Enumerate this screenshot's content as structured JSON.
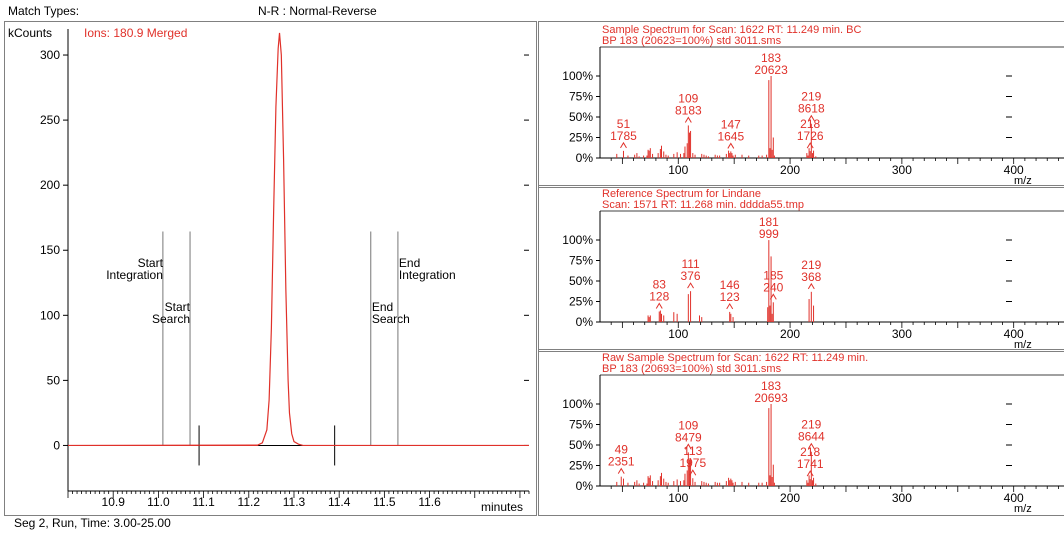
{
  "header": {
    "match_types_label": "Match Types:",
    "match_mode": "N-R : Normal-Reverse"
  },
  "footer": {
    "segment_info": "Seg 2, Run, Time:  3.00-25.00"
  },
  "colors": {
    "trace": "#e0312a",
    "axis": "#000000",
    "grid": "#999999",
    "frame": "#808080"
  },
  "chart_data": [
    {
      "type": "line",
      "title": "Ions: 180.9 Merged",
      "xlabel": "minutes",
      "ylabel": "kCounts",
      "xlim": [
        10.8,
        11.82
      ],
      "ylim": [
        -35,
        320
      ],
      "x_ticks": [
        10.9,
        11.0,
        11.1,
        11.2,
        11.3,
        11.4,
        11.5,
        11.6
      ],
      "x_tick_labels": [
        "10.9",
        "11.0",
        "11.1",
        "11.2",
        "11.3",
        "11.4",
        "11.5",
        "11.6"
      ],
      "y_ticks": [
        0,
        50,
        100,
        150,
        200,
        250,
        300
      ],
      "y_tick_labels": [
        "0",
        "50",
        "100",
        "150",
        "200",
        "250",
        "300"
      ],
      "series": [
        {
          "x": [
            10.8,
            11.22,
            11.23,
            11.24,
            11.245,
            11.25,
            11.255,
            11.26,
            11.265,
            11.268,
            11.272,
            11.277,
            11.282,
            11.287,
            11.29,
            11.295,
            11.3,
            11.31,
            11.32,
            11.82
          ],
          "y": [
            0,
            0.3,
            2,
            12,
            35,
            90,
            180,
            260,
            305,
            317,
            300,
            220,
            120,
            50,
            25,
            9,
            3,
            1,
            0,
            0
          ]
        }
      ],
      "markers": [
        {
          "label_lines": [
            "Start",
            "Integration"
          ],
          "x": 11.01
        },
        {
          "label_lines": [
            "Start",
            "Search"
          ],
          "x": 11.07
        },
        {
          "label_lines": [
            "End",
            "Search"
          ],
          "x": 11.47
        },
        {
          "label_lines": [
            "End",
            "Integration"
          ],
          "x": 11.53
        }
      ],
      "integration_ticks": [
        11.09,
        11.39
      ]
    },
    {
      "type": "bar",
      "title_lines": [
        "Sample Spectrum for Scan: 1622 RT: 11.249 min. BC",
        "BP 183 (20623=100%) std 3011.sms"
      ],
      "xlabel": "m/z",
      "xlim": [
        30,
        445
      ],
      "ylim": [
        0,
        100
      ],
      "x_ticks": [
        100,
        200,
        300,
        400
      ],
      "x_tick_labels": [
        "100",
        "200",
        "300",
        "400"
      ],
      "y_ticks": [
        0,
        25,
        50,
        75,
        100
      ],
      "y_tick_labels": [
        "0%",
        "25%",
        "50%",
        "75%",
        "100%"
      ],
      "peaks": [
        [
          45,
          5
        ],
        [
          51,
          8.7
        ],
        [
          55,
          3
        ],
        [
          61,
          4
        ],
        [
          63,
          6
        ],
        [
          65,
          2
        ],
        [
          69,
          3
        ],
        [
          72,
          3
        ],
        [
          73,
          10
        ],
        [
          74,
          9
        ],
        [
          75,
          12
        ],
        [
          77,
          5
        ],
        [
          82,
          6
        ],
        [
          84,
          11
        ],
        [
          85,
          15
        ],
        [
          87,
          8
        ],
        [
          89,
          4
        ],
        [
          91,
          3
        ],
        [
          96,
          5
        ],
        [
          99,
          7
        ],
        [
          102,
          5
        ],
        [
          105,
          6
        ],
        [
          106,
          14
        ],
        [
          108,
          18
        ],
        [
          109,
          39.7
        ],
        [
          110,
          31
        ],
        [
          111,
          33
        ],
        [
          113,
          6
        ],
        [
          115,
          4
        ],
        [
          121,
          5
        ],
        [
          123,
          4
        ],
        [
          125,
          3
        ],
        [
          127,
          2
        ],
        [
          133,
          4
        ],
        [
          135,
          3
        ],
        [
          137,
          3
        ],
        [
          143,
          5
        ],
        [
          145,
          9
        ],
        [
          146,
          6
        ],
        [
          147,
          8
        ],
        [
          148,
          6
        ],
        [
          149,
          3
        ],
        [
          151,
          4
        ],
        [
          157,
          4
        ],
        [
          163,
          3
        ],
        [
          172,
          3
        ],
        [
          175,
          3
        ],
        [
          179,
          4
        ],
        [
          181,
          95
        ],
        [
          182,
          12
        ],
        [
          183,
          100
        ],
        [
          184,
          10
        ],
        [
          185,
          25
        ],
        [
          186,
          3
        ],
        [
          215,
          6
        ],
        [
          216,
          3
        ],
        [
          217,
          12
        ],
        [
          218,
          8.4
        ],
        [
          219,
          41.8
        ],
        [
          220,
          6
        ],
        [
          221,
          9
        ],
        [
          223,
          2
        ]
      ],
      "labels": [
        {
          "mz": 51,
          "mz_text": "51",
          "intensity_text": "1785",
          "pct": 8.7
        },
        {
          "mz": 109,
          "mz_text": "109",
          "intensity_text": "8183",
          "pct": 39.7
        },
        {
          "mz": 147,
          "mz_text": "147",
          "intensity_text": "1645",
          "pct": 8
        },
        {
          "mz": 183,
          "mz_text": "183",
          "intensity_text": "20623",
          "pct": 100
        },
        {
          "mz": 218,
          "mz_text": "218",
          "intensity_text": "1726",
          "pct": 8.4
        },
        {
          "mz": 219,
          "mz_text": "219",
          "intensity_text": "8618",
          "pct": 41.8
        }
      ]
    },
    {
      "type": "bar",
      "title_lines": [
        "Reference Spectrum for Lindane",
        "Scan: 1571 RT: 11.268 min. dddda55.tmp"
      ],
      "xlabel": "m/z",
      "xlim": [
        30,
        445
      ],
      "ylim": [
        0,
        100
      ],
      "x_ticks": [
        100,
        200,
        300,
        400
      ],
      "x_tick_labels": [
        "100",
        "200",
        "300",
        "400"
      ],
      "y_ticks": [
        0,
        25,
        50,
        75,
        100
      ],
      "y_tick_labels": [
        "0%",
        "25%",
        "50%",
        "75%",
        "100%"
      ],
      "peaks": [
        [
          73,
          8
        ],
        [
          74,
          6
        ],
        [
          75,
          8
        ],
        [
          83,
          12.8
        ],
        [
          84,
          14
        ],
        [
          85,
          10
        ],
        [
          87,
          8
        ],
        [
          96,
          12
        ],
        [
          99,
          10
        ],
        [
          109,
          34
        ],
        [
          111,
          37.6
        ],
        [
          119,
          8
        ],
        [
          121,
          6
        ],
        [
          146,
          12.3
        ],
        [
          147,
          10
        ],
        [
          149,
          6
        ],
        [
          180,
          18
        ],
        [
          181,
          99.9
        ],
        [
          182,
          20
        ],
        [
          183,
          80
        ],
        [
          184,
          10
        ],
        [
          185,
          24
        ],
        [
          217,
          28
        ],
        [
          219,
          36.8
        ],
        [
          221,
          20
        ]
      ],
      "labels": [
        {
          "mz": 83,
          "mz_text": "83",
          "intensity_text": "128",
          "pct": 12.8
        },
        {
          "mz": 111,
          "mz_text": "111",
          "intensity_text": "376",
          "pct": 37.6
        },
        {
          "mz": 146,
          "mz_text": "146",
          "intensity_text": "123",
          "pct": 12.3
        },
        {
          "mz": 181,
          "mz_text": "181",
          "intensity_text": "999",
          "pct": 99.9
        },
        {
          "mz": 185,
          "mz_text": "185",
          "intensity_text": "240",
          "pct": 24
        },
        {
          "mz": 219,
          "mz_text": "219",
          "intensity_text": "368",
          "pct": 36.8
        }
      ]
    },
    {
      "type": "bar",
      "title_lines": [
        "Raw Sample Spectrum for Scan: 1622 RT: 11.249 min.",
        "BP 183 (20693=100%) std 3011.sms"
      ],
      "xlabel": "m/z",
      "xlim": [
        30,
        445
      ],
      "ylim": [
        0,
        100
      ],
      "x_ticks": [
        100,
        200,
        300,
        400
      ],
      "x_tick_labels": [
        "100",
        "200",
        "300",
        "400"
      ],
      "y_ticks": [
        0,
        25,
        50,
        75,
        100
      ],
      "y_tick_labels": [
        "0%",
        "25%",
        "50%",
        "75%",
        "100%"
      ],
      "peaks": [
        [
          45,
          5
        ],
        [
          49,
          11.4
        ],
        [
          51,
          9
        ],
        [
          55,
          4
        ],
        [
          61,
          5
        ],
        [
          63,
          7
        ],
        [
          65,
          3
        ],
        [
          69,
          4
        ],
        [
          72,
          3
        ],
        [
          73,
          12
        ],
        [
          74,
          10
        ],
        [
          75,
          13
        ],
        [
          77,
          6
        ],
        [
          82,
          7
        ],
        [
          84,
          12
        ],
        [
          85,
          16
        ],
        [
          87,
          9
        ],
        [
          89,
          5
        ],
        [
          91,
          4
        ],
        [
          96,
          6
        ],
        [
          99,
          8
        ],
        [
          102,
          6
        ],
        [
          105,
          7
        ],
        [
          106,
          15
        ],
        [
          108,
          19
        ],
        [
          109,
          41
        ],
        [
          110,
          32
        ],
        [
          111,
          34
        ],
        [
          113,
          9.5
        ],
        [
          115,
          5
        ],
        [
          121,
          6
        ],
        [
          123,
          5
        ],
        [
          125,
          4
        ],
        [
          127,
          3
        ],
        [
          133,
          5
        ],
        [
          135,
          4
        ],
        [
          137,
          4
        ],
        [
          143,
          6
        ],
        [
          145,
          10
        ],
        [
          146,
          7
        ],
        [
          147,
          9
        ],
        [
          148,
          7
        ],
        [
          149,
          4
        ],
        [
          151,
          5
        ],
        [
          157,
          5
        ],
        [
          163,
          4
        ],
        [
          172,
          4
        ],
        [
          175,
          4
        ],
        [
          179,
          5
        ],
        [
          181,
          95
        ],
        [
          182,
          13
        ],
        [
          183,
          100
        ],
        [
          184,
          11
        ],
        [
          185,
          26
        ],
        [
          186,
          4
        ],
        [
          215,
          7
        ],
        [
          216,
          4
        ],
        [
          217,
          13
        ],
        [
          218,
          8.4
        ],
        [
          219,
          41.8
        ],
        [
          220,
          7
        ],
        [
          221,
          10
        ],
        [
          223,
          3
        ]
      ],
      "labels": [
        {
          "mz": 49,
          "mz_text": "49",
          "intensity_text": "2351",
          "pct": 11.4
        },
        {
          "mz": 109,
          "mz_text": "109",
          "intensity_text": "8479",
          "pct": 41
        },
        {
          "mz": 113,
          "mz_text": "113",
          "intensity_text": "1975",
          "pct": 9.5
        },
        {
          "mz": 183,
          "mz_text": "183",
          "intensity_text": "20693",
          "pct": 100
        },
        {
          "mz": 218,
          "mz_text": "218",
          "intensity_text": "1741",
          "pct": 8.4
        },
        {
          "mz": 219,
          "mz_text": "219",
          "intensity_text": "8644",
          "pct": 41.8
        }
      ]
    }
  ]
}
